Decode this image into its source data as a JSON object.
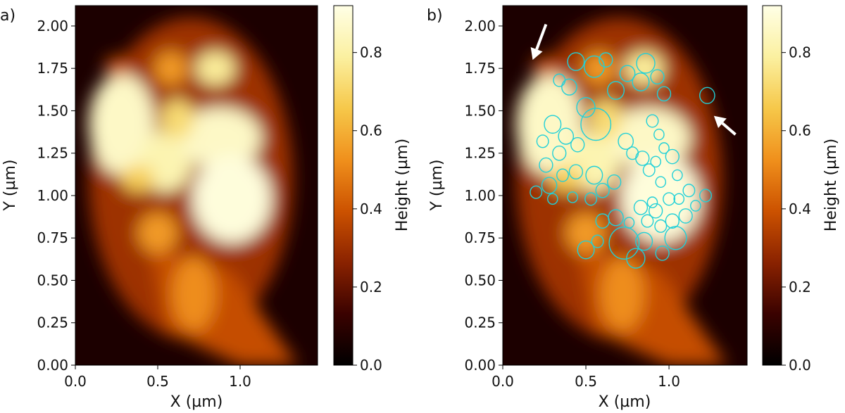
{
  "chart_data": [
    {
      "type": "heatmap",
      "panel_label": "a)",
      "xlabel": "X (µm)",
      "ylabel": "Y (µm)",
      "xlim": [
        0,
        1.47
      ],
      "ylim": [
        0,
        2.12
      ],
      "xticks": [
        0.0,
        0.5,
        1.0
      ],
      "xtick_labels": [
        "0.0",
        "0.5",
        "1.0"
      ],
      "yticks": [
        0.0,
        0.25,
        0.5,
        0.75,
        1.0,
        1.25,
        1.5,
        1.75,
        2.0
      ],
      "ytick_labels": [
        "0.00",
        "0.25",
        "0.50",
        "0.75",
        "1.00",
        "1.25",
        "1.50",
        "1.75",
        "2.00"
      ],
      "colorbar": {
        "label": "Height (µm)",
        "range": [
          0,
          0.92
        ],
        "ticks": [
          0.0,
          0.2,
          0.4,
          0.6,
          0.8
        ],
        "tick_labels": [
          "0.0",
          "0.2",
          "0.4",
          "0.6",
          "0.8"
        ],
        "colormap": [
          "#000000",
          "#3a0200",
          "#8a2200",
          "#cc5200",
          "#f0901c",
          "#f6c84a",
          "#fbf0a0",
          "#ffffe6"
        ]
      },
      "height_features": [
        {
          "x": 0.28,
          "y": 1.42,
          "rx": 0.2,
          "ry": 0.3,
          "h": 0.86
        },
        {
          "x": 0.55,
          "y": 1.2,
          "rx": 0.16,
          "ry": 0.18,
          "h": 0.82
        },
        {
          "x": 0.88,
          "y": 1.34,
          "rx": 0.25,
          "ry": 0.18,
          "h": 0.86
        },
        {
          "x": 0.95,
          "y": 0.98,
          "rx": 0.24,
          "ry": 0.26,
          "h": 0.9
        },
        {
          "x": 0.58,
          "y": 1.75,
          "rx": 0.1,
          "ry": 0.1,
          "h": 0.55
        },
        {
          "x": 0.85,
          "y": 1.75,
          "rx": 0.12,
          "ry": 0.1,
          "h": 0.78
        },
        {
          "x": 0.5,
          "y": 0.78,
          "rx": 0.12,
          "ry": 0.12,
          "h": 0.55
        },
        {
          "x": 0.72,
          "y": 0.42,
          "rx": 0.13,
          "ry": 0.22,
          "h": 0.52
        },
        {
          "x": 0.25,
          "y": 1.76,
          "rx": 0.07,
          "ry": 0.06,
          "h": 0.4
        },
        {
          "x": 0.62,
          "y": 1.45,
          "rx": 0.1,
          "ry": 0.12,
          "h": 0.72
        },
        {
          "x": 0.38,
          "y": 1.1,
          "rx": 0.1,
          "ry": 0.08,
          "h": 0.68
        }
      ]
    },
    {
      "type": "heatmap",
      "panel_label": "b)",
      "xlabel": "X (µm)",
      "ylabel": "Y (µm)",
      "xlim": [
        0,
        1.47
      ],
      "ylim": [
        0,
        2.12
      ],
      "xticks": [
        0.0,
        0.5,
        1.0
      ],
      "xtick_labels": [
        "0.0",
        "0.5",
        "1.0"
      ],
      "yticks": [
        0.0,
        0.25,
        0.5,
        0.75,
        1.0,
        1.25,
        1.5,
        1.75,
        2.0
      ],
      "ytick_labels": [
        "0.00",
        "0.25",
        "0.50",
        "0.75",
        "1.00",
        "1.25",
        "1.50",
        "1.75",
        "2.00"
      ],
      "colorbar": {
        "label": "Height (µm)",
        "range": [
          0,
          0.92
        ],
        "ticks": [
          0.0,
          0.2,
          0.4,
          0.6,
          0.8
        ],
        "tick_labels": [
          "0.0",
          "0.2",
          "0.4",
          "0.6",
          "0.8"
        ],
        "colormap": [
          "#000000",
          "#3a0200",
          "#8a2200",
          "#cc5200",
          "#f0901c",
          "#f6c84a",
          "#fbf0a0",
          "#ffffe6"
        ]
      },
      "grain_outline_color": "#20d0d8",
      "grains": [
        {
          "x": 0.44,
          "y": 1.79,
          "r": 0.05
        },
        {
          "x": 0.55,
          "y": 1.76,
          "r": 0.06
        },
        {
          "x": 0.62,
          "y": 1.8,
          "r": 0.04
        },
        {
          "x": 0.34,
          "y": 1.68,
          "r": 0.035
        },
        {
          "x": 0.4,
          "y": 1.64,
          "r": 0.045
        },
        {
          "x": 0.68,
          "y": 1.62,
          "r": 0.05
        },
        {
          "x": 0.75,
          "y": 1.72,
          "r": 0.045
        },
        {
          "x": 0.83,
          "y": 1.67,
          "r": 0.05
        },
        {
          "x": 0.86,
          "y": 1.78,
          "r": 0.055
        },
        {
          "x": 0.93,
          "y": 1.7,
          "r": 0.04
        },
        {
          "x": 0.97,
          "y": 1.6,
          "r": 0.04
        },
        {
          "x": 1.23,
          "y": 1.59,
          "r": 0.045
        },
        {
          "x": 0.5,
          "y": 1.52,
          "r": 0.055
        },
        {
          "x": 0.56,
          "y": 1.42,
          "r": 0.09
        },
        {
          "x": 0.3,
          "y": 1.42,
          "r": 0.05
        },
        {
          "x": 0.38,
          "y": 1.35,
          "r": 0.045
        },
        {
          "x": 0.24,
          "y": 1.32,
          "r": 0.035
        },
        {
          "x": 0.45,
          "y": 1.3,
          "r": 0.04
        },
        {
          "x": 0.34,
          "y": 1.25,
          "r": 0.04
        },
        {
          "x": 0.26,
          "y": 1.18,
          "r": 0.04
        },
        {
          "x": 0.28,
          "y": 1.06,
          "r": 0.045
        },
        {
          "x": 0.36,
          "y": 1.12,
          "r": 0.035
        },
        {
          "x": 0.44,
          "y": 1.14,
          "r": 0.04
        },
        {
          "x": 0.2,
          "y": 1.02,
          "r": 0.035
        },
        {
          "x": 0.3,
          "y": 0.98,
          "r": 0.03
        },
        {
          "x": 0.42,
          "y": 0.99,
          "r": 0.03
        },
        {
          "x": 0.55,
          "y": 1.12,
          "r": 0.05
        },
        {
          "x": 0.6,
          "y": 1.03,
          "r": 0.04
        },
        {
          "x": 0.67,
          "y": 1.08,
          "r": 0.04
        },
        {
          "x": 0.53,
          "y": 0.98,
          "r": 0.035
        },
        {
          "x": 0.74,
          "y": 1.32,
          "r": 0.045
        },
        {
          "x": 0.78,
          "y": 1.25,
          "r": 0.035
        },
        {
          "x": 0.84,
          "y": 1.22,
          "r": 0.04
        },
        {
          "x": 0.88,
          "y": 1.15,
          "r": 0.035
        },
        {
          "x": 0.9,
          "y": 1.44,
          "r": 0.035
        },
        {
          "x": 0.94,
          "y": 1.36,
          "r": 0.03
        },
        {
          "x": 0.97,
          "y": 1.28,
          "r": 0.03
        },
        {
          "x": 1.02,
          "y": 1.23,
          "r": 0.04
        },
        {
          "x": 0.92,
          "y": 1.2,
          "r": 0.03
        },
        {
          "x": 1.05,
          "y": 1.12,
          "r": 0.03
        },
        {
          "x": 0.95,
          "y": 1.08,
          "r": 0.03
        },
        {
          "x": 1.0,
          "y": 0.98,
          "r": 0.035
        },
        {
          "x": 1.06,
          "y": 0.98,
          "r": 0.03
        },
        {
          "x": 1.12,
          "y": 1.03,
          "r": 0.035
        },
        {
          "x": 1.22,
          "y": 1.0,
          "r": 0.035
        },
        {
          "x": 1.16,
          "y": 0.94,
          "r": 0.03
        },
        {
          "x": 1.1,
          "y": 0.88,
          "r": 0.04
        },
        {
          "x": 1.02,
          "y": 0.85,
          "r": 0.04
        },
        {
          "x": 0.92,
          "y": 0.91,
          "r": 0.04
        },
        {
          "x": 0.95,
          "y": 0.82,
          "r": 0.035
        },
        {
          "x": 0.83,
          "y": 0.93,
          "r": 0.04
        },
        {
          "x": 0.87,
          "y": 0.85,
          "r": 0.035
        },
        {
          "x": 0.68,
          "y": 0.87,
          "r": 0.045
        },
        {
          "x": 0.76,
          "y": 0.84,
          "r": 0.03
        },
        {
          "x": 0.73,
          "y": 0.72,
          "r": 0.09
        },
        {
          "x": 0.6,
          "y": 0.85,
          "r": 0.04
        },
        {
          "x": 0.57,
          "y": 0.73,
          "r": 0.035
        },
        {
          "x": 0.5,
          "y": 0.68,
          "r": 0.05
        },
        {
          "x": 0.85,
          "y": 0.73,
          "r": 0.05
        },
        {
          "x": 0.8,
          "y": 0.63,
          "r": 0.055
        },
        {
          "x": 0.96,
          "y": 0.66,
          "r": 0.04
        },
        {
          "x": 1.04,
          "y": 0.75,
          "r": 0.065
        },
        {
          "x": 0.9,
          "y": 0.96,
          "r": 0.03
        }
      ],
      "arrows": [
        {
          "tip_x": 0.18,
          "tip_y": 1.8,
          "tail_x": 0.26,
          "tail_y": 2.01
        },
        {
          "tip_x": 1.27,
          "tip_y": 1.47,
          "tail_x": 1.4,
          "tail_y": 1.36
        }
      ]
    }
  ]
}
